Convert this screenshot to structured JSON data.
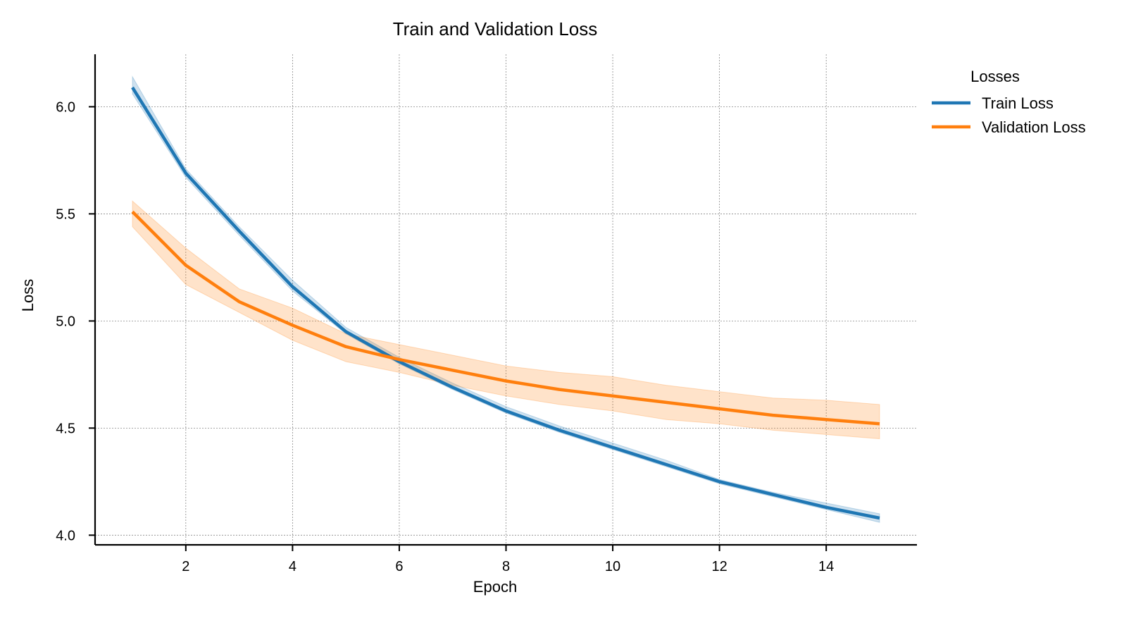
{
  "chart_data": {
    "type": "line",
    "title": "Train and Validation Loss",
    "xlabel": "Epoch",
    "ylabel": "Loss",
    "xlim": [
      0.3,
      15.7
    ],
    "ylim": [
      3.955,
      6.245
    ],
    "x_ticks": [
      2,
      4,
      6,
      8,
      10,
      12,
      14
    ],
    "y_ticks": [
      4.0,
      4.5,
      5.0,
      5.5,
      6.0
    ],
    "y_tick_labels": [
      "4.0",
      "4.5",
      "5.0",
      "5.5",
      "6.0"
    ],
    "grid": true,
    "legend": {
      "title": "Losses",
      "placement": "outside-top-right"
    },
    "x": [
      1,
      2,
      3,
      4,
      5,
      6,
      7,
      8,
      9,
      10,
      11,
      12,
      13,
      14,
      15
    ],
    "series": [
      {
        "name": "Train Loss",
        "color": "#1f77b4",
        "values": [
          6.09,
          5.69,
          5.42,
          5.16,
          4.95,
          4.81,
          4.69,
          4.58,
          4.49,
          4.41,
          4.33,
          4.25,
          4.19,
          4.13,
          4.08
        ],
        "lower": [
          6.06,
          5.67,
          5.4,
          5.14,
          4.94,
          4.8,
          4.68,
          4.57,
          4.48,
          4.4,
          4.32,
          4.24,
          4.18,
          4.12,
          4.06
        ],
        "upper": [
          6.14,
          5.71,
          5.44,
          5.19,
          4.97,
          4.83,
          4.71,
          4.6,
          4.51,
          4.43,
          4.35,
          4.26,
          4.2,
          4.15,
          4.1
        ]
      },
      {
        "name": "Validation Loss",
        "color": "#ff7f0e",
        "values": [
          5.51,
          5.26,
          5.09,
          4.98,
          4.88,
          4.82,
          4.77,
          4.72,
          4.68,
          4.65,
          4.62,
          4.59,
          4.56,
          4.54,
          4.52
        ],
        "lower": [
          5.44,
          5.17,
          5.04,
          4.91,
          4.81,
          4.76,
          4.7,
          4.65,
          4.61,
          4.58,
          4.54,
          4.52,
          4.49,
          4.47,
          4.45
        ],
        "upper": [
          5.56,
          5.34,
          5.15,
          5.06,
          4.94,
          4.89,
          4.84,
          4.79,
          4.76,
          4.74,
          4.7,
          4.67,
          4.64,
          4.63,
          4.61
        ]
      }
    ]
  }
}
